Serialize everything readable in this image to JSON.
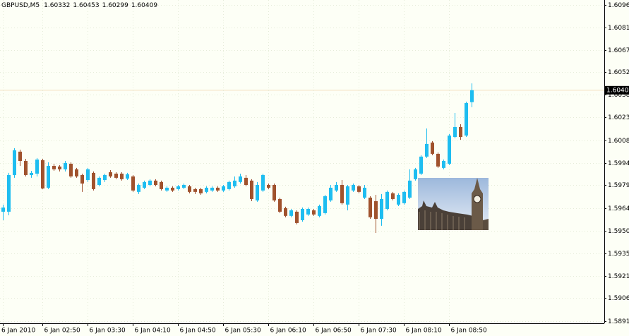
{
  "chart_data": {
    "type": "candlestick",
    "title": "GBPUSD,M5",
    "categories": [
      "6 Jan 2010",
      null,
      null,
      null,
      null,
      null,
      null,
      "6 Jan 02:50",
      null,
      null,
      null,
      null,
      null,
      null,
      null,
      "6 Jan 03:30",
      null,
      null,
      null,
      null,
      null,
      null,
      null,
      "6 Jan 04:10",
      null,
      null,
      null,
      null,
      null,
      null,
      null,
      "6 Jan 04:50",
      null,
      null,
      null,
      null,
      null,
      null,
      null,
      "6 Jan 05:30",
      null,
      null,
      null,
      null,
      null,
      null,
      null,
      "6 Jan 06:10",
      null,
      null,
      null,
      null,
      null,
      null,
      null,
      "6 Jan 06:50",
      null,
      null,
      null,
      null,
      null,
      null,
      null,
      "6 Jan 07:30",
      null,
      null,
      null,
      null,
      null,
      null,
      null,
      "6 Jan 08:10",
      null,
      null,
      null,
      null,
      null,
      null,
      null,
      "6 Jan 08:50",
      null,
      null,
      null,
      null
    ],
    "open": [
      1.59624,
      1.59624,
      1.59861,
      1.60012,
      1.59952,
      1.59861,
      1.5987,
      1.59957,
      1.59779,
      1.5992,
      1.59916,
      1.59898,
      1.59934,
      1.59898,
      1.59861,
      1.59829,
      1.59875,
      1.59797,
      1.59829,
      1.59879,
      1.5987,
      1.5987,
      1.59838,
      1.59852,
      1.59752,
      1.59779,
      1.59797,
      1.59825,
      1.59816,
      1.59761,
      1.59779,
      1.5977,
      1.59779,
      1.59788,
      1.5977,
      1.5977,
      1.59752,
      1.59761,
      1.59779,
      1.59761,
      1.5977,
      1.59788,
      1.59816,
      1.59843,
      1.59825,
      1.59697,
      1.59761,
      1.59797,
      1.59797,
      1.59706,
      1.59647,
      1.59597,
      1.59624,
      1.59569,
      1.59606,
      1.59633,
      1.59597,
      1.59615,
      1.59697,
      1.59761,
      1.59797,
      1.5967,
      1.59761,
      1.59788,
      1.59715,
      1.59715,
      1.59692,
      1.59578,
      1.59642,
      1.59743,
      1.5967,
      1.59679,
      1.59715,
      1.59834,
      1.5987,
      1.5998,
      1.60071,
      1.59998,
      1.59907,
      1.59934,
      1.60107,
      1.60171,
      1.60116,
      1.60332
    ],
    "high": [
      1.5967,
      1.59875,
      1.60034,
      1.60025,
      1.59966,
      1.59888,
      1.59971,
      1.59966,
      1.59943,
      1.59934,
      1.59925,
      1.59952,
      1.59943,
      1.59907,
      1.5987,
      1.59907,
      1.59884,
      1.59852,
      1.5987,
      1.59893,
      1.59879,
      1.59879,
      1.59875,
      1.59861,
      1.59806,
      1.59825,
      1.59834,
      1.59834,
      1.59825,
      1.59788,
      1.59788,
      1.59797,
      1.59806,
      1.59797,
      1.59779,
      1.59779,
      1.59788,
      1.59788,
      1.59788,
      1.59797,
      1.59825,
      1.59852,
      1.5987,
      1.59861,
      1.59834,
      1.59816,
      1.5987,
      1.59806,
      1.59806,
      1.59715,
      1.59656,
      1.59642,
      1.59633,
      1.59651,
      1.59651,
      1.59642,
      1.5967,
      1.59733,
      1.59797,
      1.59816,
      1.59829,
      1.59797,
      1.59806,
      1.59797,
      1.59797,
      1.59724,
      1.59733,
      1.59738,
      1.59761,
      1.59752,
      1.59743,
      1.59761,
      1.59898,
      1.59907,
      1.59989,
      1.60162,
      1.6008,
      1.60007,
      1.59961,
      1.60126,
      1.60262,
      1.60189,
      1.60335,
      1.60453
    ],
    "low": [
      1.59569,
      1.59601,
      1.59843,
      1.5992,
      1.59852,
      1.59843,
      1.59852,
      1.5977,
      1.5977,
      1.59888,
      1.59884,
      1.59884,
      1.59843,
      1.59843,
      1.59752,
      1.59816,
      1.59761,
      1.59788,
      1.59816,
      1.59843,
      1.59834,
      1.59825,
      1.59829,
      1.59752,
      1.59738,
      1.5977,
      1.59788,
      1.59788,
      1.59761,
      1.59752,
      1.59752,
      1.59761,
      1.5977,
      1.59743,
      1.59738,
      1.59733,
      1.59743,
      1.59752,
      1.59752,
      1.59752,
      1.59761,
      1.59779,
      1.59806,
      1.59788,
      1.59692,
      1.59688,
      1.59752,
      1.5977,
      1.59688,
      1.59615,
      1.59588,
      1.59588,
      1.59542,
      1.5956,
      1.59597,
      1.59597,
      1.59588,
      1.59606,
      1.59688,
      1.59752,
      1.5967,
      1.59633,
      1.59752,
      1.59743,
      1.59706,
      1.59578,
      1.59487,
      1.59533,
      1.59633,
      1.59697,
      1.5966,
      1.5967,
      1.59706,
      1.59825,
      1.59861,
      1.59971,
      1.59989,
      1.59907,
      1.59898,
      1.59925,
      1.60098,
      1.60089,
      1.60107,
      1.60299
    ],
    "close": [
      1.59651,
      1.59861,
      1.60021,
      1.59952,
      1.59861,
      1.59875,
      1.59961,
      1.59774,
      1.5992,
      1.59898,
      1.59898,
      1.59939,
      1.59852,
      1.59852,
      1.59806,
      1.59898,
      1.5977,
      1.59843,
      1.59861,
      1.59852,
      1.59843,
      1.59834,
      1.59866,
      1.59761,
      1.59797,
      1.59816,
      1.59825,
      1.59797,
      1.5977,
      1.59779,
      1.59761,
      1.59788,
      1.59797,
      1.59752,
      1.59752,
      1.59743,
      1.59779,
      1.59779,
      1.59761,
      1.59788,
      1.59816,
      1.59825,
      1.59852,
      1.59797,
      1.59706,
      1.59797,
      1.59861,
      1.59779,
      1.59697,
      1.59624,
      1.59597,
      1.59633,
      1.59551,
      1.59642,
      1.59642,
      1.59606,
      1.5966,
      1.59724,
      1.59779,
      1.59797,
      1.59679,
      1.59788,
      1.59797,
      1.59752,
      1.59779,
      1.59588,
      1.59578,
      1.59706,
      1.59752,
      1.59706,
      1.59733,
      1.59752,
      1.59825,
      1.59898,
      1.5998,
      1.60062,
      1.59998,
      1.59916,
      1.59952,
      1.60116,
      1.60171,
      1.60107,
      1.60326,
      1.60409
    ],
    "up_color": "#1ebdf0",
    "down_color": "#a0522d",
    "ylim": [
      1.58903,
      1.60992
    ],
    "yticks": [
      {
        "value": 1.6096,
        "label": "1.60960"
      },
      1.60815,
      {
        "value": 1.6067,
        "label": "1.60670"
      },
      1.60525,
      {
        "value": 1.6038,
        "label": "1.60380"
      },
      1.60235,
      1.60085,
      {
        "value": 1.5994,
        "label": "1.59940"
      },
      1.59795,
      1.59645,
      {
        "value": 1.595,
        "label": "1.59500"
      },
      1.59355,
      {
        "value": 1.5921,
        "label": "1.59210"
      },
      1.59065,
      1.58915
    ],
    "grid": true
  }
}
